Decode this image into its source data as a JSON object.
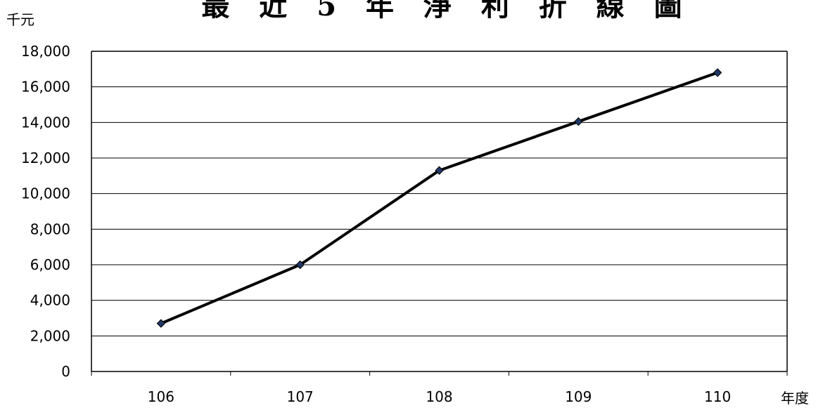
{
  "chart_data": {
    "type": "line",
    "title": "最 近 5 年 淨 利 折 線 圖",
    "ylabel": "千元",
    "xlabel": "年度",
    "categories": [
      "106",
      "107",
      "108",
      "109",
      "110"
    ],
    "series": [
      {
        "values": [
          2700,
          6000,
          11300,
          14050,
          16800
        ],
        "color": "#000000",
        "marker_color": "#1f3864"
      }
    ],
    "ylim": [
      0,
      18000
    ],
    "yticks": [
      0,
      2000,
      4000,
      6000,
      8000,
      10000,
      12000,
      14000,
      16000,
      18000
    ],
    "ytick_labels": [
      "0",
      "2,000",
      "4,000",
      "6,000",
      "8,000",
      "10,000",
      "12,000",
      "14,000",
      "16,000",
      "18,000"
    ],
    "grid": true,
    "legend": "none"
  }
}
